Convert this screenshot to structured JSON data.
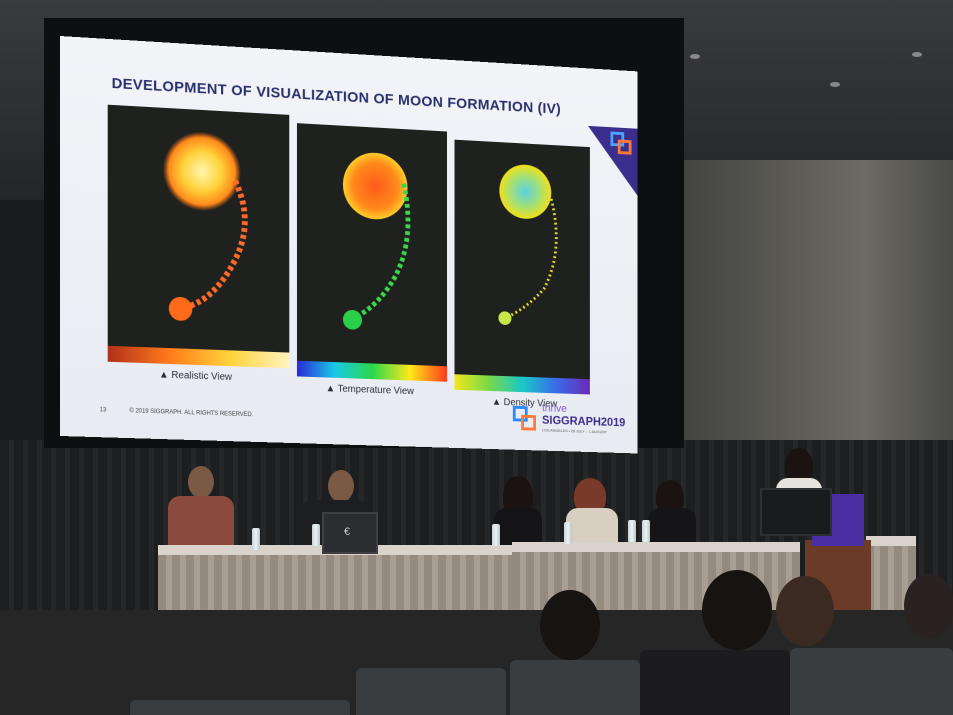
{
  "slide": {
    "title": "DEVELOPMENT OF VISUALIZATION OF MOON FORMATION (IV)",
    "panels": [
      {
        "caption": "▲ Realistic View"
      },
      {
        "caption": "▲ Temperature View"
      },
      {
        "caption": "▲ Density View"
      }
    ],
    "page_number": "13",
    "copyright": "© 2019 SIGGRAPH. ALL RIGHTS RESERVED.",
    "brand": {
      "tagline": "thrive",
      "name": "SIGGRAPH2019",
      "subline": "LOS ANGELES • 28 JULY – 1 AUGUST"
    }
  },
  "colors": {
    "title": "#27306b",
    "brand_purple": "#3b2e8c",
    "screen_bg": "#f2f4f8"
  },
  "icons": [
    "siggraph-logo-icon",
    "laptop-logo-icon"
  ]
}
